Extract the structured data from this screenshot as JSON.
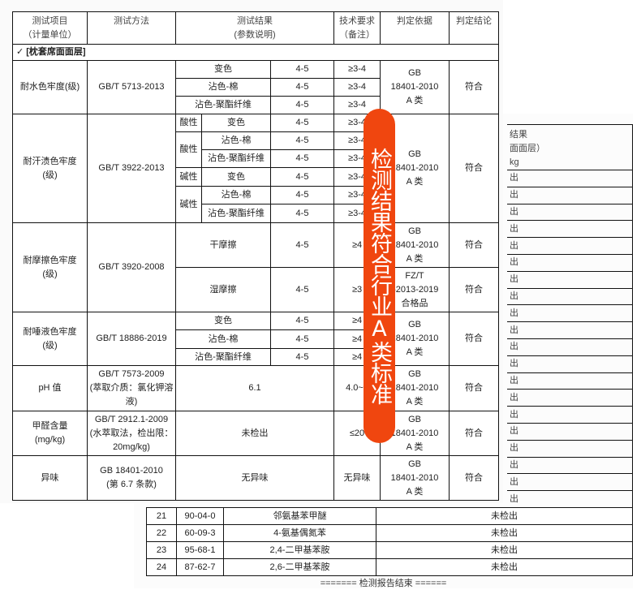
{
  "header": {
    "item": "测试项目\n（计量单位）",
    "method": "测试方法",
    "result": "测试结果\n(参数说明)",
    "requirement": "技术要求\n（备注）",
    "basis": "判定依据",
    "conclusion": "判定结论"
  },
  "section": "✓ [枕套席面面层]",
  "gb_basis": "GB\n18401-2010\nA 类",
  "pass": "符合",
  "water": {
    "item": "耐水色牢度(级)",
    "method": "GB/T 5713-2013",
    "rows": [
      {
        "param": "变色",
        "value": "4-5",
        "req": "≥3-4"
      },
      {
        "param": "沾色-棉",
        "value": "4-5",
        "req": "≥3-4"
      },
      {
        "param": "沾色-聚酯纤维",
        "value": "4-5",
        "req": "≥3-4"
      }
    ]
  },
  "sweat": {
    "item": "耐汗渍色牢度\n(级)",
    "method": "GB/T 3922-2013",
    "acid": "酸性",
    "alkali": "碱性",
    "rows": [
      {
        "param": "变色",
        "value": "4-5",
        "req": "≥3-4"
      },
      {
        "param": "沾色-棉",
        "value": "4-5",
        "req": "≥3-4"
      },
      {
        "param": "沾色-聚酯纤维",
        "value": "4-5",
        "req": "≥3-4"
      },
      {
        "param": "变色",
        "value": "4-5",
        "req": "≥3-4"
      },
      {
        "param": "沾色-棉",
        "value": "4-5",
        "req": "≥3-4"
      },
      {
        "param": "沾色-聚酯纤维",
        "value": "4-5",
        "req": "≥3-4"
      }
    ]
  },
  "rubbing": {
    "item": "耐摩擦色牢度\n(级)",
    "method": "GB/T 3920-2008",
    "rows": [
      {
        "param": "干摩擦",
        "value": "4-5",
        "req": "≥4"
      },
      {
        "param": "湿摩擦",
        "value": "4-5",
        "req": "≥3",
        "basis": "FZ/T\n62013-2019\n合格品"
      }
    ]
  },
  "saliva": {
    "item": "耐唾液色牢度\n(级)",
    "method": "GB/T 18886-2019",
    "rows": [
      {
        "param": "变色",
        "value": "4-5",
        "req": "≥4"
      },
      {
        "param": "沾色-棉",
        "value": "4-5",
        "req": "≥4"
      },
      {
        "param": "沾色-聚酯纤维",
        "value": "4-5",
        "req": "≥4"
      }
    ]
  },
  "ph": {
    "item": "pH 值",
    "method": "GB/T 7573-2009\n(萃取介质：氯化钾溶液)",
    "value": "6.1",
    "req": "4.0~7"
  },
  "formaldehyde": {
    "item": "甲醛含量\n(mg/kg)",
    "method": "GB/T 2912.1-2009\n(水萃取法，检出限：20mg/kg)",
    "value": "未检出",
    "req": "≤20"
  },
  "odor": {
    "item": "异味",
    "method": "GB 18401-2010\n(第 6.7 条款)",
    "value": "无异味",
    "req": "无异味"
  },
  "banner": "检测结果符合行业A类标准",
  "back_page": {
    "header_fragments": [
      "结果",
      "面面层）",
      "kg"
    ],
    "strip_cell": "出",
    "rows": [
      {
        "no": "21",
        "cas": "90-04-0",
        "name": "邻氨基苯甲醚",
        "result": "未检出"
      },
      {
        "no": "22",
        "cas": "60-09-3",
        "name": "4-氨基偶氮苯",
        "result": "未检出"
      },
      {
        "no": "23",
        "cas": "95-68-1",
        "name": "2,4-二甲基苯胺",
        "result": "未检出"
      },
      {
        "no": "24",
        "cas": "87-62-7",
        "name": "2,6-二甲基苯胺",
        "result": "未检出"
      }
    ],
    "end_text": "======= 检测报告结束 ======"
  },
  "colors": {
    "banner": "#f0460f"
  }
}
